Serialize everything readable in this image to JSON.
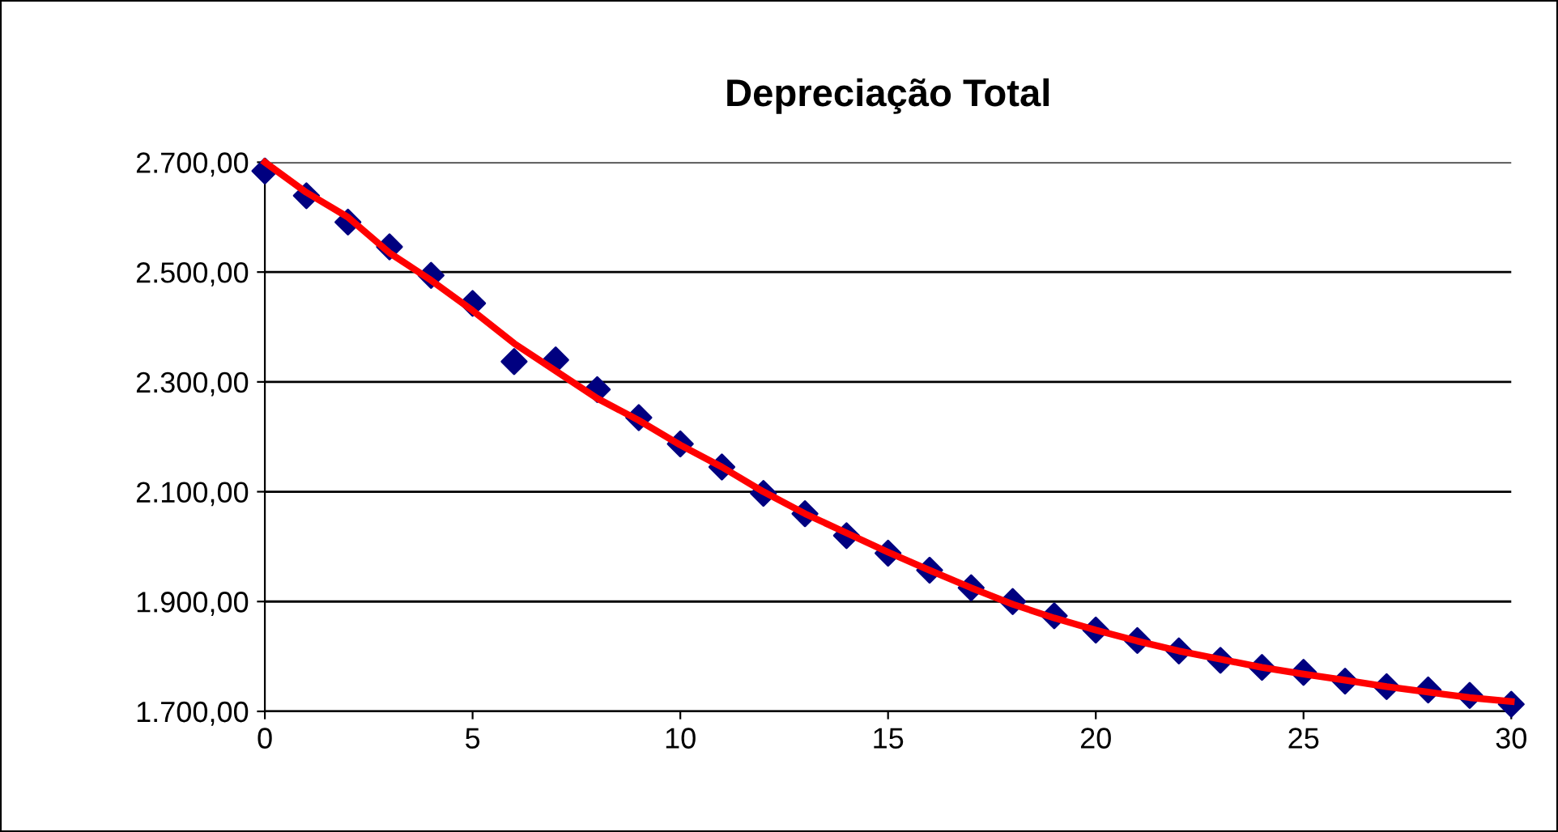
{
  "chart_data": {
    "type": "scatter",
    "title": "Depreciação Total",
    "x": [
      0,
      1,
      2,
      3,
      4,
      5,
      6,
      7,
      8,
      9,
      10,
      11,
      12,
      13,
      14,
      15,
      16,
      17,
      18,
      19,
      20,
      21,
      22,
      23,
      24,
      25,
      26,
      27,
      28,
      29,
      30
    ],
    "series": [
      {
        "color": "#000080",
        "marker": "diamond",
        "values": [
          2684,
          2639,
          2591,
          2546,
          2494,
          2443,
          2337,
          2340,
          2286,
          2235,
          2187,
          2145,
          2097,
          2060,
          2020,
          1988,
          1957,
          1925,
          1900,
          1874,
          1848,
          1829,
          1810,
          1793,
          1780,
          1771,
          1755,
          1745,
          1739,
          1729,
          1713
        ]
      },
      {
        "type": "line",
        "color": "#ff0000",
        "marker": "none",
        "line_style": "solid",
        "values": [
          2700,
          2645,
          2600,
          2535,
          2485,
          2430,
          2370,
          2320,
          2270,
          2230,
          2185,
          2145,
          2100,
          2060,
          2025,
          1990,
          1957,
          1925,
          1895,
          1870,
          1848,
          1828,
          1810,
          1795,
          1780,
          1768,
          1757,
          1745,
          1735,
          1725,
          1718
        ]
      }
    ],
    "xlim": [
      0,
      30
    ],
    "xticks": [
      0,
      5,
      10,
      15,
      20,
      25,
      30
    ],
    "ylim": [
      1700,
      2700
    ],
    "yticks": [
      {
        "value": 1700,
        "label": "1.700,00"
      },
      {
        "value": 1900,
        "label": "1.900,00"
      },
      {
        "value": 2100,
        "label": "2.100,00"
      },
      {
        "value": 2300,
        "label": "2.300,00"
      },
      {
        "value": 2500,
        "label": "2.500,00"
      },
      {
        "value": 2700,
        "label": "2.700,00"
      }
    ],
    "grid": "y",
    "legend": false
  }
}
